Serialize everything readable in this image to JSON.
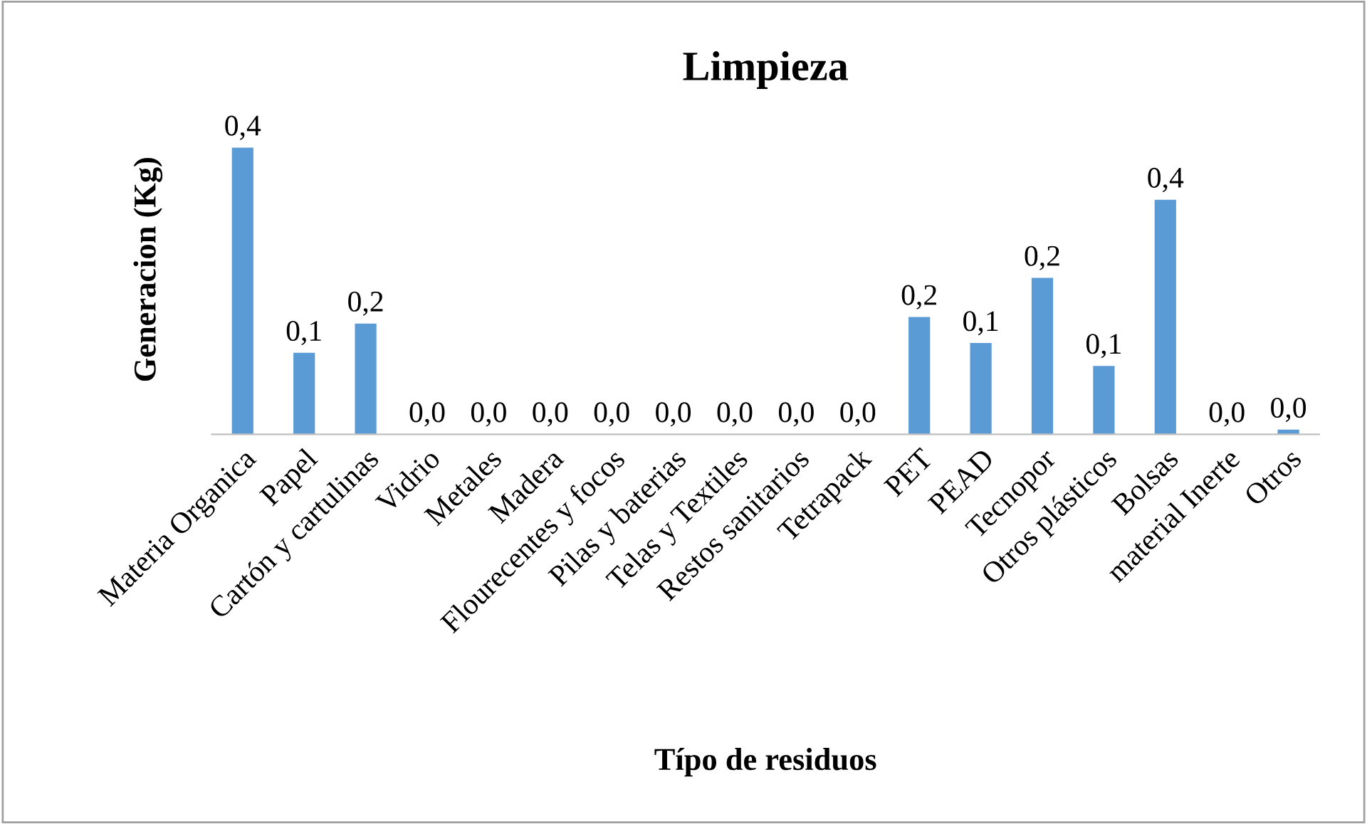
{
  "chart_data": {
    "type": "bar",
    "title": "Limpieza",
    "xlabel": "Típo de residuos",
    "ylabel": "Generacion (Kg)",
    "categories": [
      "Materia Organica",
      "Papel",
      "Cartón y cartulinas",
      "Vidrio",
      "Metales",
      "Madera",
      "Flourecentes y focos",
      "Pilas y baterias",
      "Telas y Textiles",
      "Restos sanitarios",
      "Tetrapack",
      "PET",
      "PEAD",
      "Tecnopor",
      "Otros plásticos",
      "Bolsas",
      "material Inerte",
      "Otros"
    ],
    "values": [
      0.44,
      0.125,
      0.17,
      0,
      0,
      0,
      0,
      0,
      0,
      0,
      0,
      0.18,
      0.14,
      0.24,
      0.105,
      0.36,
      0,
      0.007
    ],
    "value_labels": [
      "0,4",
      "0,1",
      "0,2",
      "0,0",
      "0,0",
      "0,0",
      "0,0",
      "0,0",
      "0,0",
      "0,0",
      "0,0",
      "0,2",
      "0,1",
      "0,2",
      "0,1",
      "0,4",
      "0,0",
      "0,0"
    ],
    "color": "#5b9bd5",
    "grid": false,
    "legend": false
  }
}
